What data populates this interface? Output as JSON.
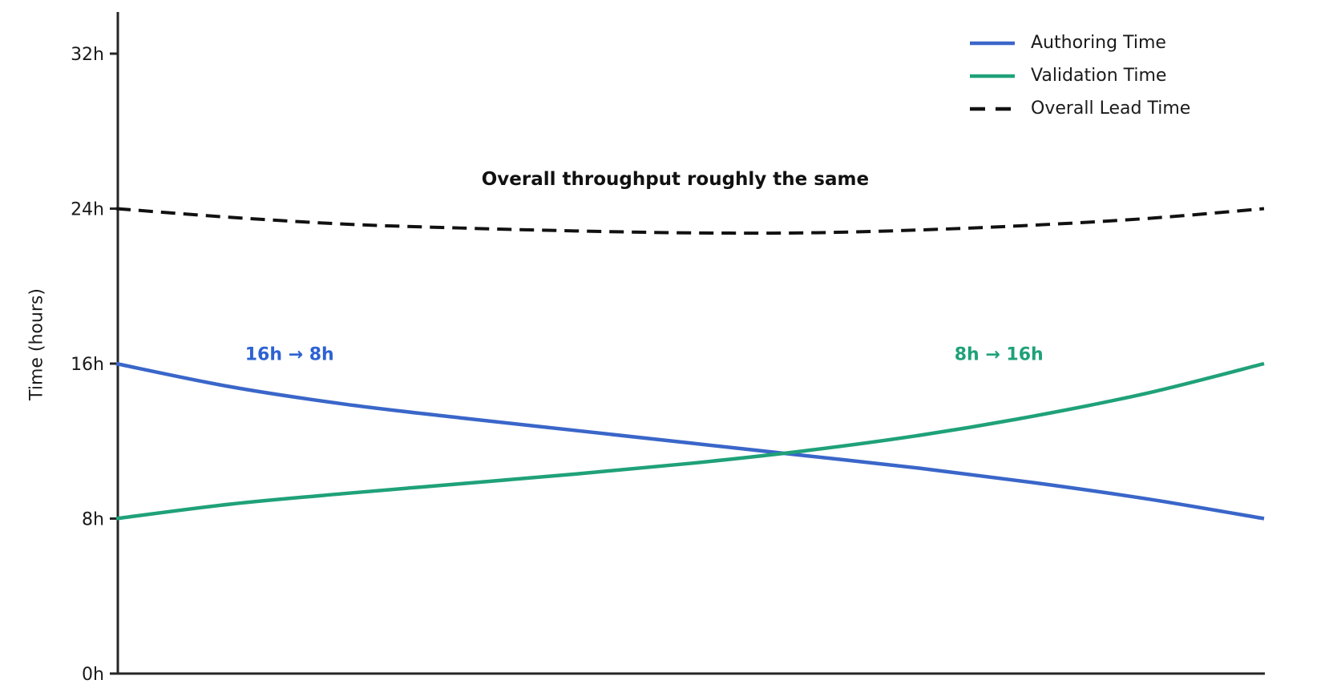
{
  "chart_data": {
    "type": "line",
    "title": "",
    "xlabel": "",
    "ylabel": "Time (hours)",
    "xlim": [
      0,
      1
    ],
    "ylim": [
      0,
      32
    ],
    "grid": false,
    "axis_color": "#262626",
    "tick_label_color": "#1a1a1a",
    "background_color": "#ffffff",
    "yticks": [
      {
        "value": 0,
        "label": "0h"
      },
      {
        "value": 8,
        "label": "8h"
      },
      {
        "value": 16,
        "label": "16h"
      },
      {
        "value": 24,
        "label": "24h"
      },
      {
        "value": 32,
        "label": "32h"
      }
    ],
    "xticks": [],
    "x": [
      0,
      0.1,
      0.2,
      0.3,
      0.4,
      0.5,
      0.6,
      0.7,
      0.8,
      0.9,
      1.0
    ],
    "series": [
      {
        "name": "Authoring Time",
        "color": "#3a66c9",
        "dash": "solid",
        "values": [
          16.0,
          14.8,
          13.9,
          13.2,
          12.55,
          11.9,
          11.25,
          10.6,
          9.85,
          9.0,
          8.0
        ]
      },
      {
        "name": "Validation Time",
        "color": "#1fa179",
        "dash": "solid",
        "values": [
          8.0,
          8.75,
          9.3,
          9.8,
          10.3,
          10.85,
          11.5,
          12.3,
          13.3,
          14.5,
          16.0
        ]
      },
      {
        "name": "Overall Lead Time",
        "color": "#111111",
        "dash": "dashed",
        "values": [
          24.0,
          23.55,
          23.2,
          23.0,
          22.85,
          22.75,
          22.75,
          22.9,
          23.15,
          23.5,
          24.0
        ]
      }
    ],
    "legend": {
      "position": "top-right",
      "frame": false
    },
    "annotations": [
      {
        "id": "throughput-note",
        "text": "Overall throughput roughly the same",
        "x": 0.487,
        "y": 25.5,
        "color": "#111111"
      },
      {
        "id": "authoring-note",
        "text": "16h → 8h",
        "x": 0.151,
        "y": 16.45,
        "color": "#2d62d2"
      },
      {
        "id": "validation-note",
        "text": "8h → 16h",
        "x": 0.769,
        "y": 16.45,
        "color": "#1fa179"
      }
    ]
  }
}
